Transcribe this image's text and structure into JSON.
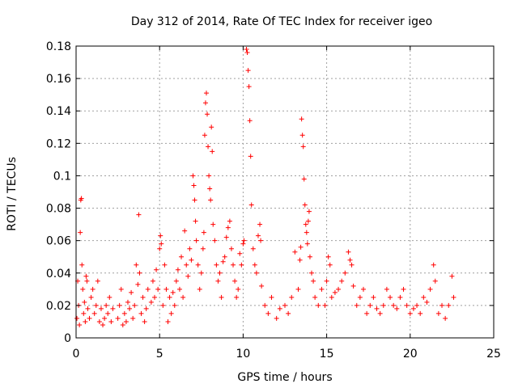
{
  "chart_data": {
    "type": "scatter",
    "title": "Day 312 of 2014, Rate Of TEC Index for receiver igeo",
    "xlabel": "GPS time / hours",
    "ylabel": "ROTI / TECUs",
    "xlim": [
      0,
      25
    ],
    "ylim": [
      0,
      0.18
    ],
    "grid": true,
    "marker": "+",
    "color": "#ff0000",
    "x_ticks": [
      0,
      5,
      10,
      15,
      20,
      25
    ],
    "x_tick_labels": [
      "0",
      "5",
      "10",
      "15",
      "20",
      "25"
    ],
    "y_ticks": [
      0,
      0.02,
      0.04,
      0.06,
      0.08,
      0.1,
      0.12,
      0.14,
      0.16,
      0.18
    ],
    "y_tick_labels": [
      "0",
      "0.02",
      "0.04",
      "0.06",
      "0.08",
      "0.1",
      "0.12",
      "0.14",
      "0.16",
      "0.18"
    ],
    "series": [
      {
        "name": "ROTI",
        "points": [
          [
            0.05,
            0.012
          ],
          [
            0.1,
            0.035
          ],
          [
            0.15,
            0.02
          ],
          [
            0.2,
            0.008
          ],
          [
            0.25,
            0.065
          ],
          [
            0.28,
            0.085
          ],
          [
            0.32,
            0.086
          ],
          [
            0.35,
            0.045
          ],
          [
            0.4,
            0.03
          ],
          [
            0.45,
            0.015
          ],
          [
            0.5,
            0.022
          ],
          [
            0.55,
            0.01
          ],
          [
            0.6,
            0.038
          ],
          [
            0.65,
            0.035
          ],
          [
            0.7,
            0.018
          ],
          [
            0.8,
            0.012
          ],
          [
            0.9,
            0.025
          ],
          [
            1.0,
            0.03
          ],
          [
            1.1,
            0.015
          ],
          [
            1.2,
            0.02
          ],
          [
            1.3,
            0.035
          ],
          [
            1.4,
            0.01
          ],
          [
            1.5,
            0.018
          ],
          [
            1.6,
            0.008
          ],
          [
            1.7,
            0.012
          ],
          [
            1.8,
            0.02
          ],
          [
            1.9,
            0.015
          ],
          [
            2.0,
            0.025
          ],
          [
            2.1,
            0.01
          ],
          [
            2.2,
            0.018
          ],
          [
            2.5,
            0.012
          ],
          [
            2.6,
            0.02
          ],
          [
            2.7,
            0.03
          ],
          [
            2.8,
            0.008
          ],
          [
            2.9,
            0.015
          ],
          [
            3.0,
            0.01
          ],
          [
            3.1,
            0.022
          ],
          [
            3.2,
            0.018
          ],
          [
            3.3,
            0.028
          ],
          [
            3.4,
            0.012
          ],
          [
            3.5,
            0.02
          ],
          [
            3.6,
            0.045
          ],
          [
            3.7,
            0.033
          ],
          [
            3.75,
            0.076
          ],
          [
            3.8,
            0.04
          ],
          [
            3.9,
            0.015
          ],
          [
            4.0,
            0.025
          ],
          [
            4.1,
            0.01
          ],
          [
            4.2,
            0.018
          ],
          [
            4.3,
            0.03
          ],
          [
            4.5,
            0.022
          ],
          [
            4.6,
            0.035
          ],
          [
            4.7,
            0.025
          ],
          [
            4.8,
            0.042
          ],
          [
            4.9,
            0.03
          ],
          [
            5.0,
            0.055
          ],
          [
            5.05,
            0.063
          ],
          [
            5.1,
            0.058
          ],
          [
            5.2,
            0.02
          ],
          [
            5.3,
            0.045
          ],
          [
            5.4,
            0.03
          ],
          [
            5.5,
            0.01
          ],
          [
            5.6,
            0.025
          ],
          [
            5.7,
            0.015
          ],
          [
            5.8,
            0.028
          ],
          [
            5.9,
            0.02
          ],
          [
            6.0,
            0.035
          ],
          [
            6.1,
            0.042
          ],
          [
            6.2,
            0.03
          ],
          [
            6.3,
            0.05
          ],
          [
            6.4,
            0.025
          ],
          [
            6.5,
            0.066
          ],
          [
            6.6,
            0.045
          ],
          [
            6.7,
            0.038
          ],
          [
            6.8,
            0.055
          ],
          [
            6.9,
            0.048
          ],
          [
            7.0,
            0.1
          ],
          [
            7.05,
            0.094
          ],
          [
            7.1,
            0.085
          ],
          [
            7.15,
            0.072
          ],
          [
            7.2,
            0.06
          ],
          [
            7.3,
            0.045
          ],
          [
            7.4,
            0.03
          ],
          [
            7.5,
            0.04
          ],
          [
            7.6,
            0.055
          ],
          [
            7.65,
            0.065
          ],
          [
            7.7,
            0.125
          ],
          [
            7.75,
            0.145
          ],
          [
            7.8,
            0.151
          ],
          [
            7.85,
            0.138
          ],
          [
            7.9,
            0.118
          ],
          [
            7.95,
            0.1
          ],
          [
            8.0,
            0.092
          ],
          [
            8.05,
            0.085
          ],
          [
            8.1,
            0.13
          ],
          [
            8.15,
            0.115
          ],
          [
            8.2,
            0.07
          ],
          [
            8.3,
            0.06
          ],
          [
            8.4,
            0.045
          ],
          [
            8.5,
            0.035
          ],
          [
            8.6,
            0.04
          ],
          [
            8.7,
            0.025
          ],
          [
            8.8,
            0.047
          ],
          [
            8.9,
            0.05
          ],
          [
            9.0,
            0.062
          ],
          [
            9.1,
            0.068
          ],
          [
            9.2,
            0.072
          ],
          [
            9.3,
            0.055
          ],
          [
            9.4,
            0.045
          ],
          [
            9.5,
            0.035
          ],
          [
            9.6,
            0.025
          ],
          [
            9.7,
            0.03
          ],
          [
            9.8,
            0.052
          ],
          [
            9.9,
            0.045
          ],
          [
            10.0,
            0.058
          ],
          [
            10.05,
            0.06
          ],
          [
            10.2,
            0.178
          ],
          [
            10.25,
            0.176
          ],
          [
            10.3,
            0.165
          ],
          [
            10.35,
            0.155
          ],
          [
            10.4,
            0.134
          ],
          [
            10.45,
            0.112
          ],
          [
            10.5,
            0.082
          ],
          [
            10.6,
            0.055
          ],
          [
            10.7,
            0.045
          ],
          [
            10.8,
            0.04
          ],
          [
            10.9,
            0.063
          ],
          [
            11.0,
            0.07
          ],
          [
            11.05,
            0.06
          ],
          [
            11.1,
            0.032
          ],
          [
            11.3,
            0.02
          ],
          [
            11.5,
            0.015
          ],
          [
            11.7,
            0.025
          ],
          [
            12.0,
            0.012
          ],
          [
            12.2,
            0.018
          ],
          [
            12.5,
            0.02
          ],
          [
            12.7,
            0.015
          ],
          [
            12.9,
            0.025
          ],
          [
            13.1,
            0.053
          ],
          [
            13.3,
            0.03
          ],
          [
            13.4,
            0.048
          ],
          [
            13.45,
            0.056
          ],
          [
            13.5,
            0.135
          ],
          [
            13.55,
            0.125
          ],
          [
            13.6,
            0.118
          ],
          [
            13.65,
            0.098
          ],
          [
            13.7,
            0.082
          ],
          [
            13.75,
            0.07
          ],
          [
            13.8,
            0.065
          ],
          [
            13.85,
            0.058
          ],
          [
            13.9,
            0.072
          ],
          [
            13.95,
            0.078
          ],
          [
            14.0,
            0.05
          ],
          [
            14.1,
            0.04
          ],
          [
            14.2,
            0.035
          ],
          [
            14.3,
            0.025
          ],
          [
            14.5,
            0.02
          ],
          [
            14.7,
            0.03
          ],
          [
            14.9,
            0.02
          ],
          [
            15.0,
            0.035
          ],
          [
            15.1,
            0.05
          ],
          [
            15.2,
            0.045
          ],
          [
            15.3,
            0.025
          ],
          [
            15.5,
            0.028
          ],
          [
            15.7,
            0.03
          ],
          [
            15.9,
            0.035
          ],
          [
            16.1,
            0.04
          ],
          [
            16.3,
            0.053
          ],
          [
            16.4,
            0.048
          ],
          [
            16.5,
            0.045
          ],
          [
            16.6,
            0.032
          ],
          [
            16.8,
            0.02
          ],
          [
            17.0,
            0.025
          ],
          [
            17.2,
            0.03
          ],
          [
            17.4,
            0.015
          ],
          [
            17.6,
            0.02
          ],
          [
            17.8,
            0.025
          ],
          [
            18.0,
            0.018
          ],
          [
            18.2,
            0.015
          ],
          [
            18.4,
            0.02
          ],
          [
            18.6,
            0.03
          ],
          [
            18.8,
            0.025
          ],
          [
            19.0,
            0.02
          ],
          [
            19.2,
            0.018
          ],
          [
            19.4,
            0.025
          ],
          [
            19.6,
            0.03
          ],
          [
            19.8,
            0.02
          ],
          [
            20.0,
            0.015
          ],
          [
            20.2,
            0.018
          ],
          [
            20.4,
            0.02
          ],
          [
            20.6,
            0.015
          ],
          [
            20.8,
            0.025
          ],
          [
            21.0,
            0.022
          ],
          [
            21.2,
            0.03
          ],
          [
            21.4,
            0.045
          ],
          [
            21.5,
            0.035
          ],
          [
            21.7,
            0.015
          ],
          [
            21.9,
            0.02
          ],
          [
            22.1,
            0.012
          ],
          [
            22.3,
            0.02
          ],
          [
            22.5,
            0.038
          ],
          [
            22.6,
            0.025
          ]
        ]
      }
    ]
  }
}
